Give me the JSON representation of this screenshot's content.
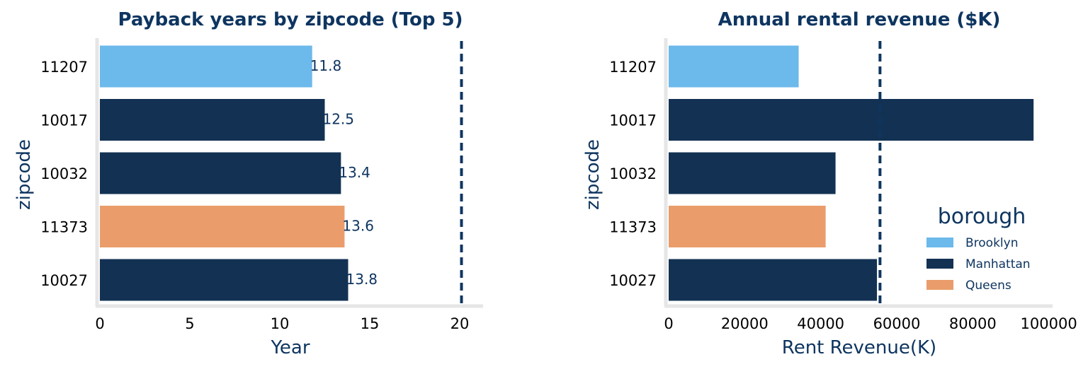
{
  "chart_data": [
    {
      "type": "bar",
      "orientation": "horizontal",
      "title": "Payback years by zipcode (Top 5)",
      "xlabel": "Year",
      "ylabel": "zipcode",
      "categories": [
        "11207",
        "10017",
        "10032",
        "11373",
        "10027"
      ],
      "values": [
        11.8,
        12.5,
        13.4,
        13.6,
        13.8
      ],
      "value_labels": [
        "11.8",
        "12.5",
        "13.4",
        "13.6",
        "13.8"
      ],
      "bar_groups": [
        "Brooklyn",
        "Manhattan",
        "Manhattan",
        "Queens",
        "Manhattan"
      ],
      "xlim": [
        0,
        21.3
      ],
      "xticks": [
        0,
        5,
        10,
        15,
        20
      ],
      "xtick_labels": [
        "0",
        "5",
        "10",
        "15",
        "20"
      ],
      "reference_line": 20.1,
      "grid": false
    },
    {
      "type": "bar",
      "orientation": "horizontal",
      "title": "Annual rental revenue ($K)",
      "xlabel": "Rent Revenue(K)",
      "ylabel": "zipcode",
      "categories": [
        "11207",
        "10017",
        "10032",
        "11373",
        "10027"
      ],
      "values": [
        34200,
        96000,
        43900,
        41300,
        54800
      ],
      "bar_groups": [
        "Brooklyn",
        "Manhattan",
        "Manhattan",
        "Queens",
        "Manhattan"
      ],
      "xlim": [
        0,
        101000
      ],
      "xticks": [
        0,
        20000,
        40000,
        60000,
        80000,
        100000
      ],
      "xtick_labels": [
        "0",
        "20000",
        "40000",
        "60000",
        "80000",
        "100000"
      ],
      "reference_line": 55600,
      "grid": false,
      "legend": {
        "title": "borough",
        "placement": "lower-right",
        "entries": [
          {
            "name": "Brooklyn",
            "color": "#6cb9eb"
          },
          {
            "name": "Manhattan",
            "color": "#133253"
          },
          {
            "name": "Queens",
            "color": "#ea9d6b"
          }
        ]
      }
    }
  ],
  "colors": {
    "Brooklyn": "#6cb9eb",
    "Manhattan": "#133253",
    "Queens": "#ea9d6b",
    "reference_line": "#0e3560",
    "axis": "#e6e6e6",
    "text_accent": "#0e3560"
  }
}
